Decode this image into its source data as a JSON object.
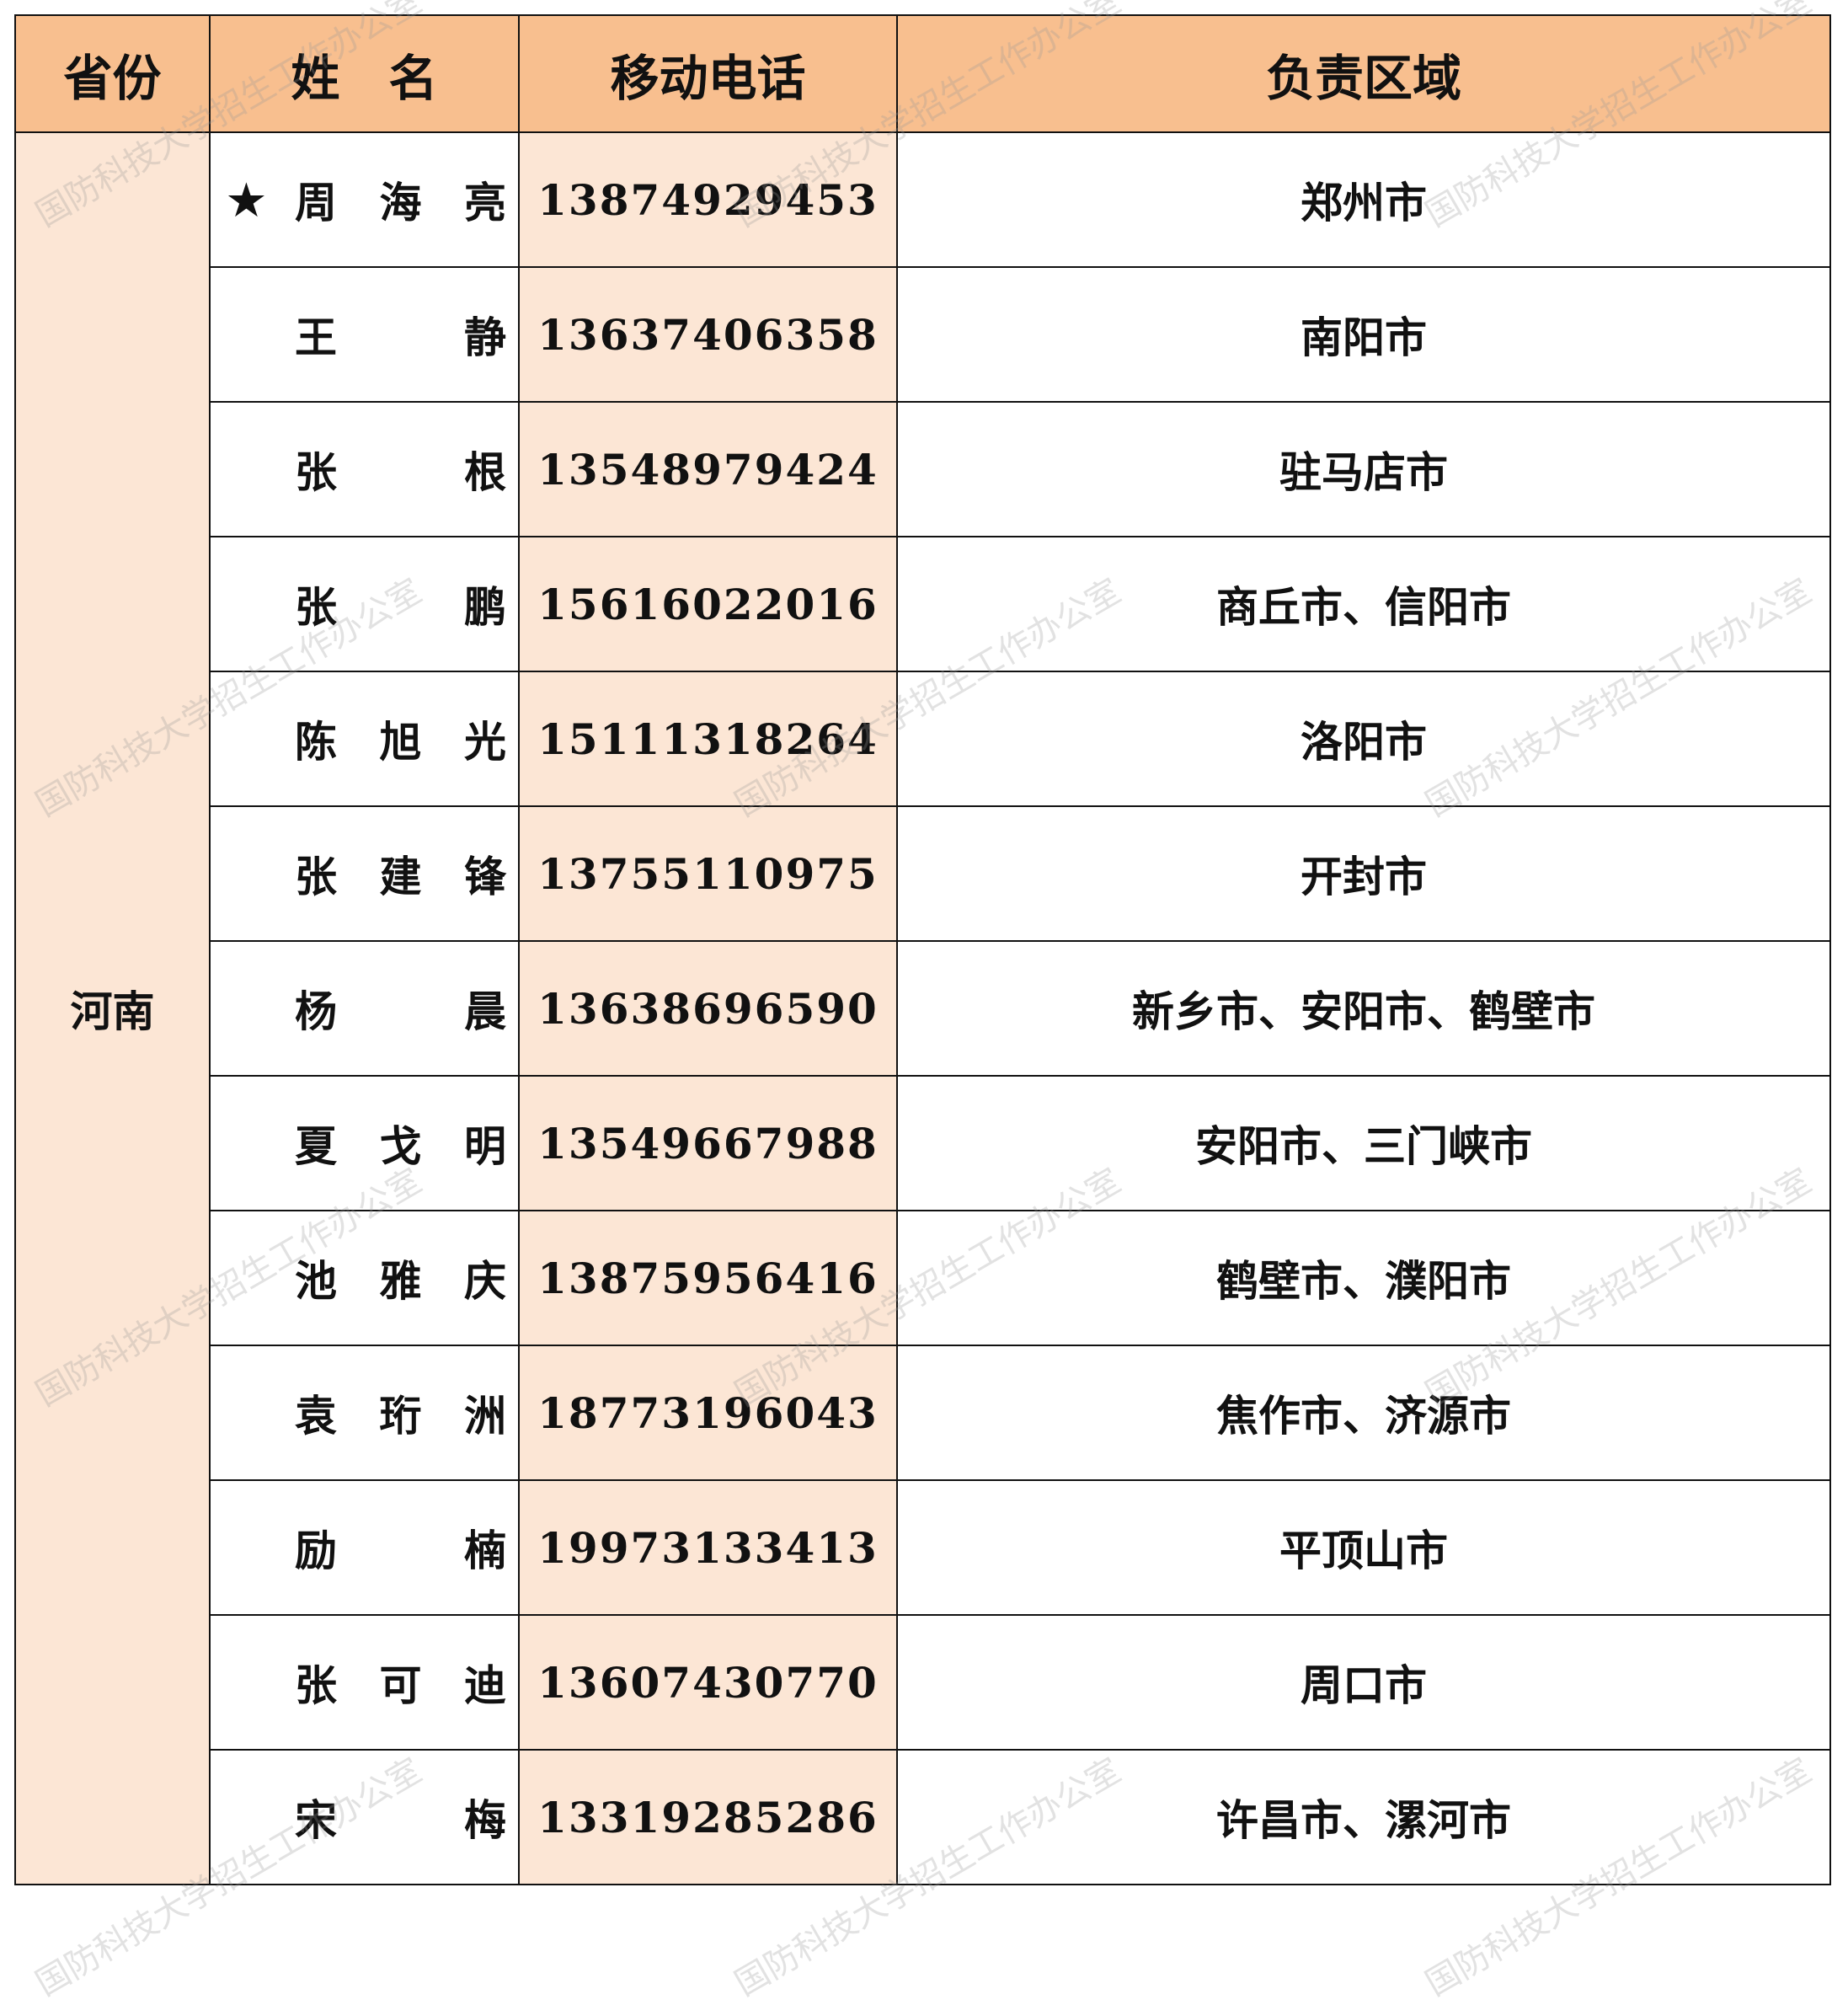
{
  "headers": {
    "province": "省份",
    "name": "姓　名",
    "phone": "移动电话",
    "region": "负责区域"
  },
  "province": "河南",
  "star_icon": "★",
  "rows": [
    {
      "name": "周海亮",
      "starred": true,
      "phone": "13874929453",
      "region": "郑州市"
    },
    {
      "name": "王静",
      "phone": "13637406358",
      "region": "南阳市"
    },
    {
      "name": "张根",
      "phone": "13548979424",
      "region": "驻马店市"
    },
    {
      "name": "张鹏",
      "phone": "15616022016",
      "region": "商丘市、信阳市"
    },
    {
      "name": "陈旭光",
      "phone": "15111318264",
      "region": "洛阳市"
    },
    {
      "name": "张建锋",
      "phone": "13755110975",
      "region": "开封市"
    },
    {
      "name": "杨晨",
      "phone": "13638696590",
      "region": "新乡市、安阳市、鹤壁市"
    },
    {
      "name": "夏戈明",
      "phone": "13549667988",
      "region": "安阳市、三门峡市"
    },
    {
      "name": "池雅庆",
      "phone": "13875956416",
      "region": "鹤壁市、濮阳市"
    },
    {
      "name": "袁珩洲",
      "phone": "18773196043",
      "region": "焦作市、济源市"
    },
    {
      "name": "励楠",
      "phone": "19973133413",
      "region": "平顶山市"
    },
    {
      "name": "张可迪",
      "phone": "13607430770",
      "region": "周口市"
    },
    {
      "name": "宋梅",
      "phone": "13319285286",
      "region": "许昌市、漯河市"
    }
  ],
  "watermark": "国防科技大学招生工作办公室",
  "colors": {
    "header_bg": "#f8bf8f",
    "highlight_bg": "#fce6d5"
  }
}
